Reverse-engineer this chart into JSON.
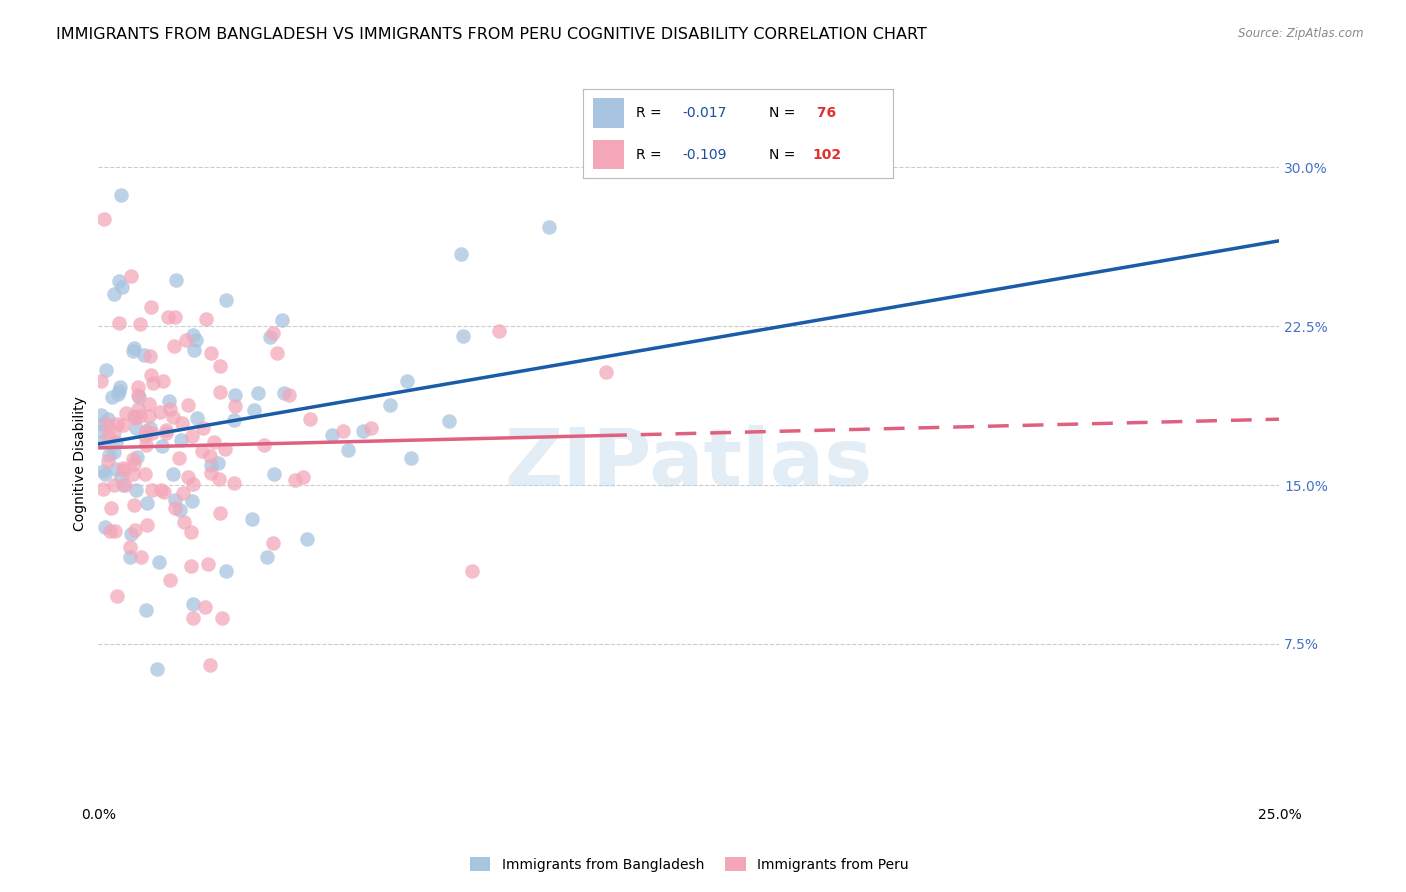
{
  "title": "IMMIGRANTS FROM BANGLADESH VS IMMIGRANTS FROM PERU COGNITIVE DISABILITY CORRELATION CHART",
  "source": "Source: ZipAtlas.com",
  "ylabel": "Cognitive Disability",
  "yticks": [
    0.0,
    0.075,
    0.15,
    0.225,
    0.3
  ],
  "ytick_labels": [
    "",
    "7.5%",
    "15.0%",
    "22.5%",
    "30.0%"
  ],
  "xlim": [
    0.0,
    0.25
  ],
  "ylim": [
    0.0,
    0.32
  ],
  "bangladesh_color": "#a8c4e0",
  "peru_color": "#f4a7b9",
  "bangladesh_line_color": "#1a5ca8",
  "peru_line_color": "#e06080",
  "R_bangladesh": -0.017,
  "N_bangladesh": 76,
  "R_peru": -0.109,
  "N_peru": 102,
  "legend_R_color": "#1a4fa0",
  "legend_N_color": "#e03030",
  "watermark": "ZIPatlas",
  "background_color": "#ffffff",
  "grid_color": "#cccccc",
  "title_fontsize": 11.5,
  "axis_label_fontsize": 10,
  "tick_fontsize": 10,
  "tick_color": "#4472c4",
  "seed_bangladesh": 42,
  "seed_peru": 123
}
